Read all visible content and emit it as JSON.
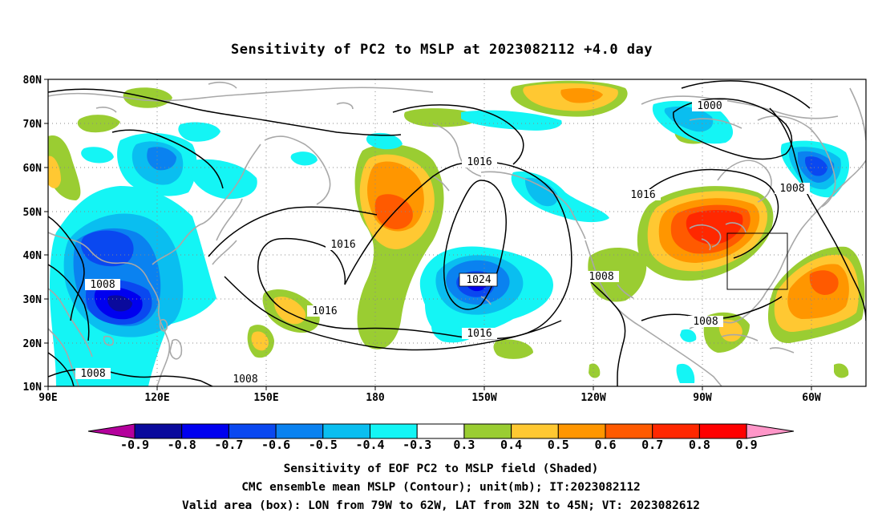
{
  "title": "Sensitivity of PC2 to MSLP at 2023082112 +4.0 day",
  "map": {
    "lat_labels": [
      "80N",
      "70N",
      "60N",
      "50N",
      "40N",
      "30N",
      "20N",
      "10N"
    ],
    "lon_labels": [
      "90E",
      "120E",
      "150E",
      "180",
      "150W",
      "120W",
      "90W",
      "60W"
    ],
    "grid": "dotted",
    "coastline_color": "#a8a8a8",
    "contour_color": "#000000",
    "contour_labels": [
      "1000",
      "1008",
      "1008",
      "1008",
      "1008",
      "1008",
      "1016",
      "1016",
      "1016",
      "1016",
      "1016",
      "1024",
      "1008"
    ],
    "valid_box": {
      "lon_from": "79W",
      "lon_to": "62W",
      "lat_from": "32N",
      "lat_to": "45N"
    }
  },
  "colorbar": {
    "labels": [
      "-0.9",
      "-0.8",
      "-0.7",
      "-0.6",
      "-0.5",
      "-0.4",
      "-0.3",
      "0.3",
      "0.4",
      "0.5",
      "0.6",
      "0.7",
      "0.8",
      "0.9"
    ],
    "colors": [
      "#b4009c",
      "#0a0a9c",
      "#0000ef",
      "#0a48f0",
      "#0a82f0",
      "#0abef0",
      "#14f5f5",
      "#ffffff",
      "#9acd32",
      "#ffc832",
      "#ff9600",
      "#ff5a00",
      "#ff2800",
      "#ff0000",
      "#ff96c8"
    ]
  },
  "captions": [
    "Sensitivity of EOF PC2 to MSLP field (Shaded)",
    "CMC ensemble mean MSLP (Contour); unit(mb); IT:2023082112",
    "Valid area (box): LON from 79W to 62W, LAT from 32N to 45N; VT: 2023082612"
  ]
}
